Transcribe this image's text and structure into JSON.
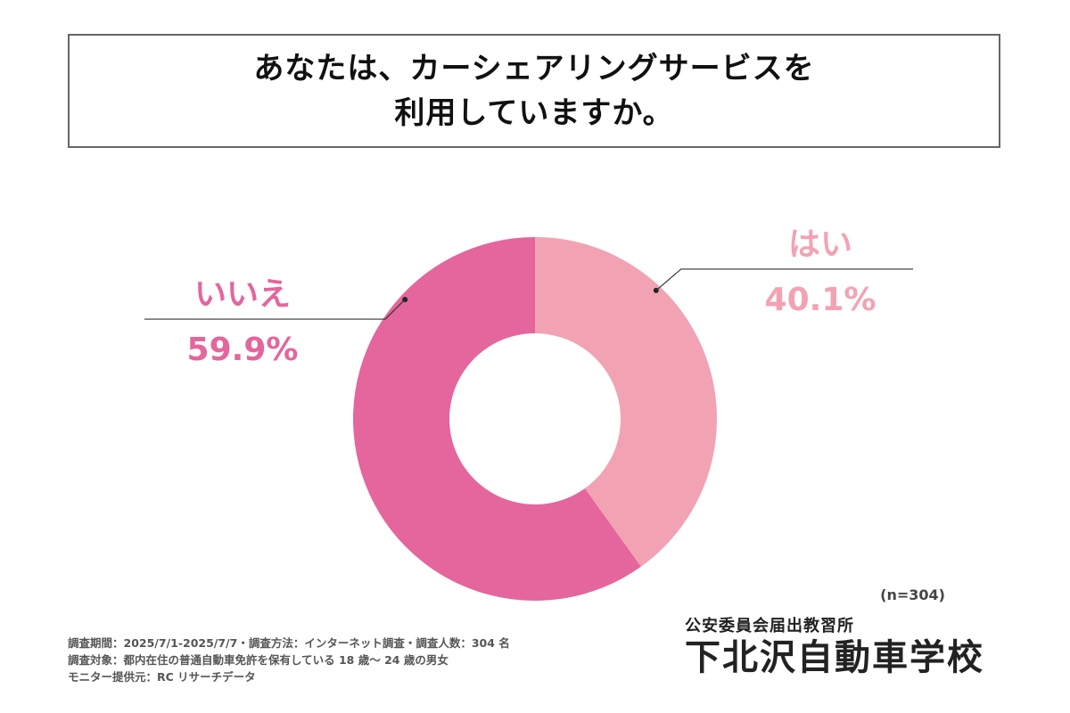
{
  "title": {
    "line1": "あなたは、カーシェアリングサービスを",
    "line2": "利用していますか。"
  },
  "chart_data": {
    "type": "pie",
    "categories": [
      "はい",
      "いいえ"
    ],
    "values": [
      40.1,
      59.9
    ],
    "data_labels": [
      "40.1%",
      "59.9%"
    ],
    "colors": [
      "#F2A3B3",
      "#E5659D"
    ],
    "title": "あなたは、カーシェアリングサービスを利用していますか。",
    "sample_size": "(n=304)",
    "legend": "none",
    "grid": false
  },
  "sample_size_label": "(n=304)",
  "notes": {
    "line1": "調査期間：2025/7/1-2025/7/7・調査方法：インターネット調査・調査人数：304 名",
    "line2": "調査対象：都内在住の普通自動車免許を保有している 18 歳～ 24 歳の男女",
    "line3": "モニター提供元：RC リサーチデータ"
  },
  "brand": {
    "subtitle": "公安委員会届出教習所",
    "name": "下北沢自動車学校"
  }
}
